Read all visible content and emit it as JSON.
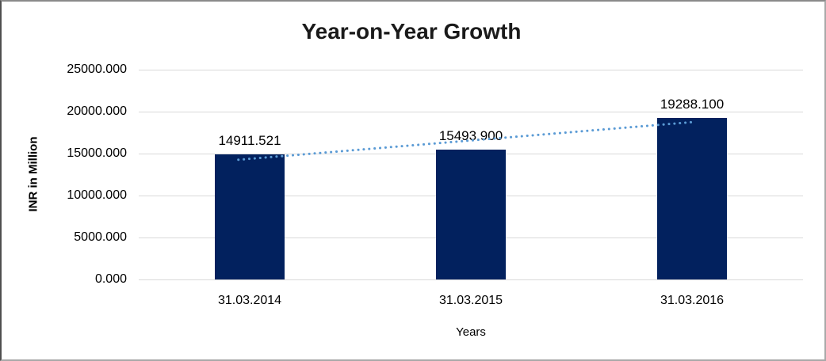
{
  "chart_data": {
    "type": "bar",
    "title": "Year-on-Year Growth",
    "categories": [
      "31.03.2014",
      "31.03.2015",
      "31.03.2016"
    ],
    "values": [
      14911.521,
      15493.9,
      19288.1
    ],
    "value_labels": [
      "14911.521",
      "15493.900",
      "19288.100"
    ],
    "series": [
      {
        "name": "INR in Million",
        "values": [
          14911.521,
          15493.9,
          19288.1
        ]
      }
    ],
    "xlabel": "Years",
    "ylabel": "INR in Million",
    "ylim": [
      0,
      25000
    ],
    "ytick_values": [
      0,
      5000,
      10000,
      15000,
      20000,
      25000
    ],
    "ytick_labels": [
      "0.000",
      "5000.000",
      "10000.000",
      "15000.000",
      "20000.000",
      "25000.000"
    ],
    "grid": "horizontal",
    "legend": "none",
    "data_labels": "above-bars",
    "trendline": {
      "type": "linear",
      "style": "dotted"
    }
  },
  "colors": {
    "bar": "#02215E",
    "trendline": "#5B9BD5",
    "gridline": "#D9D9D9",
    "title_text": "#1A1A1A",
    "axis_text": "#000000",
    "background": "#FFFFFF"
  }
}
